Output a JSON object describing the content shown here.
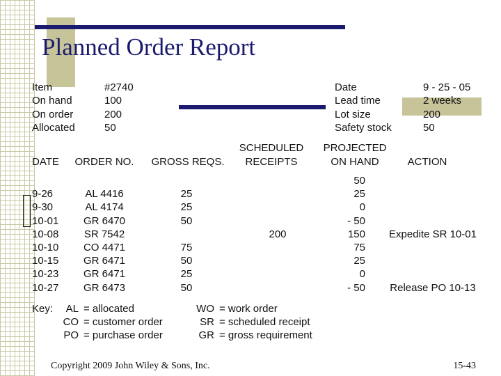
{
  "header": {
    "title": "Planned Order Report"
  },
  "info_left": [
    {
      "label": "Item",
      "value": "#2740"
    },
    {
      "label": "On hand",
      "value": "100"
    },
    {
      "label": "On order",
      "value": "200"
    },
    {
      "label": "Allocated",
      "value": "50"
    }
  ],
  "info_right": [
    {
      "label": "Date",
      "value": "9 - 25 - 05"
    },
    {
      "label": "Lead time",
      "value": "2 weeks"
    },
    {
      "label": "Lot size",
      "value": "200"
    },
    {
      "label": "Safety stock",
      "value": "50"
    }
  ],
  "table": {
    "headers": [
      [
        "DATE"
      ],
      [
        "ORDER NO."
      ],
      [
        "GROSS REQS."
      ],
      [
        "SCHEDULED",
        "RECEIPTS"
      ],
      [
        "PROJECTED",
        "ON HAND"
      ],
      [
        "ACTION"
      ]
    ],
    "rows": [
      [
        null,
        null,
        null,
        null,
        "50",
        null
      ],
      [
        "9-26",
        "AL 4416",
        "25",
        null,
        "25",
        null
      ],
      [
        "9-30",
        "AL 4174",
        "25",
        null,
        "0",
        null
      ],
      [
        "10-01",
        "GR 6470",
        "50",
        null,
        "- 50",
        null
      ],
      [
        "10-08",
        "SR 7542",
        null,
        "200",
        "150",
        "Expedite SR 10-01"
      ],
      [
        "10-10",
        "CO 4471",
        "75",
        null,
        "75",
        null
      ],
      [
        "10-15",
        "GR 6471",
        "50",
        null,
        "25",
        null
      ],
      [
        "10-23",
        "GR 6471",
        "25",
        null,
        "0",
        null
      ],
      [
        "10-27",
        "GR 6473",
        "50",
        null,
        "- 50",
        "Release PO 10-13"
      ]
    ]
  },
  "key": {
    "label": "Key:",
    "columns": [
      [
        {
          "abbr": "AL",
          "definition": "= allocated"
        },
        {
          "abbr": "CO",
          "definition": "= customer order"
        },
        {
          "abbr": "PO",
          "definition": "= purchase order"
        }
      ],
      [
        {
          "abbr": "WO",
          "definition": "= work order"
        },
        {
          "abbr": "SR",
          "definition": "= scheduled receipt"
        },
        {
          "abbr": "GR",
          "definition": "= gross requirement"
        }
      ]
    ]
  },
  "footer": {
    "copyright": "Copyright 2009 John Wiley & Sons, Inc.",
    "page": "15-43"
  }
}
